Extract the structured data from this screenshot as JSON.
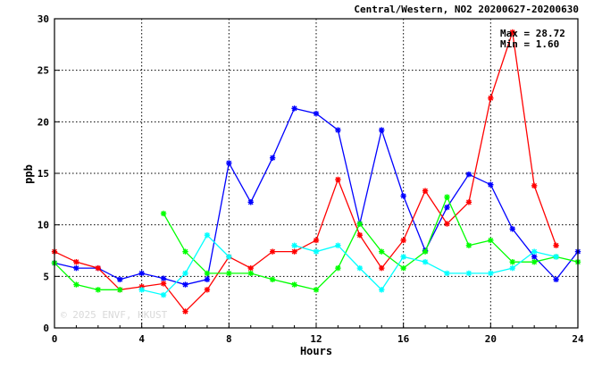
{
  "chart_data": {
    "type": "line",
    "title": "Central/Western, NO2 20200627-20200630",
    "xlabel": "Hours",
    "ylabel": "ppb",
    "xlim": [
      0,
      24
    ],
    "ylim": [
      0,
      30
    ],
    "xticks": [
      0,
      4,
      8,
      12,
      16,
      20,
      24
    ],
    "yticks": [
      0,
      5,
      10,
      15,
      20,
      25,
      30
    ],
    "grid": true,
    "stats": {
      "max_label": "Max = 28.72",
      "min_label": "Min =  1.60"
    },
    "watermark": "© 2025  ENVF, HKUST",
    "x": [
      0,
      1,
      2,
      3,
      4,
      5,
      6,
      7,
      8,
      9,
      10,
      11,
      12,
      13,
      14,
      15,
      16,
      17,
      18,
      19,
      20,
      21,
      22,
      23,
      24
    ],
    "series": [
      {
        "color": "#0000ff",
        "marker": "*",
        "values": [
          6.3,
          5.8,
          5.8,
          4.7,
          5.3,
          4.8,
          4.2,
          4.7,
          16.0,
          12.2,
          16.5,
          21.3,
          20.8,
          19.2,
          10.1,
          19.2,
          12.8,
          7.5,
          11.7,
          14.9,
          13.9,
          9.6,
          6.9,
          4.7,
          7.4
        ]
      },
      {
        "color": "#ff0000",
        "marker": "*",
        "values": [
          7.4,
          6.4,
          5.8,
          3.7,
          4.0,
          4.3,
          1.6,
          3.7,
          6.9,
          5.8,
          7.4,
          7.4,
          8.5,
          14.4,
          9.0,
          5.8,
          8.5,
          13.3,
          10.1,
          12.2,
          22.3,
          28.7,
          13.8,
          8.0,
          null
        ]
      },
      {
        "color": "#00ff00",
        "marker": "*",
        "values": [
          6.3,
          4.2,
          3.7,
          3.7,
          null,
          11.1,
          7.4,
          5.3,
          5.3,
          5.3,
          4.7,
          4.2,
          3.7,
          5.8,
          10.1,
          7.4,
          5.8,
          7.4,
          12.7,
          8.0,
          8.5,
          6.4,
          6.4,
          6.9,
          6.4
        ]
      },
      {
        "color": "#00ffff",
        "marker": "*",
        "values": [
          null,
          null,
          null,
          null,
          3.7,
          3.2,
          5.3,
          9.0,
          6.9,
          null,
          null,
          8.0,
          7.4,
          8.0,
          5.8,
          3.7,
          6.9,
          6.4,
          5.3,
          5.3,
          5.3,
          5.8,
          7.4,
          6.9,
          null
        ]
      }
    ]
  }
}
